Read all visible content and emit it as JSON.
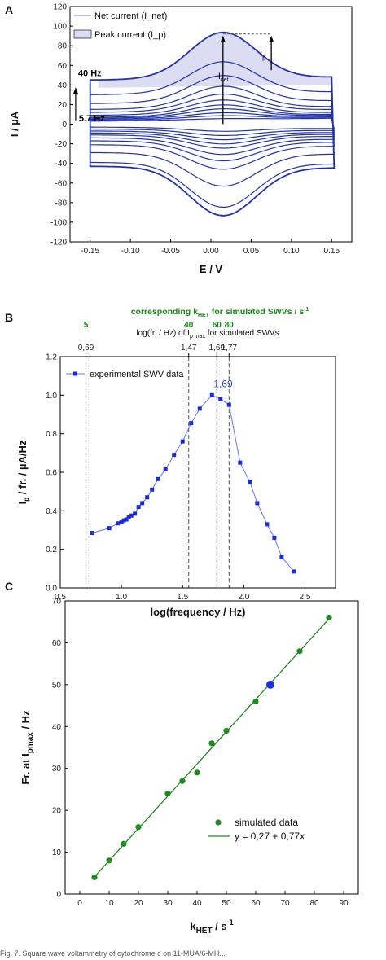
{
  "chart_data": [
    {
      "panel": "A",
      "type": "line",
      "xlabel": "E / V",
      "ylabel": "I / µA",
      "xlim": [
        -0.175,
        0.175
      ],
      "ylim": [
        -120,
        120
      ],
      "x_ticks": [
        "-0.15",
        "-0.10",
        "-0.05",
        "0.00",
        "0.05",
        "0.10",
        "0.15"
      ],
      "y_ticks": [
        "-120",
        "-100",
        "-80",
        "-60",
        "-40",
        "-20",
        "0",
        "20",
        "40",
        "60",
        "80",
        "100",
        "120"
      ],
      "legend": [
        "Net current (I_net)",
        "Peak current (I_p)"
      ],
      "legend_placement": "top-left",
      "annotations": {
        "high_freq": "40 Hz",
        "low_freq": "5.7 Hz",
        "ip_label": "I",
        "ip_sub": "p",
        "inet_label": "I",
        "inet_sub": "net"
      },
      "peak_potential": 0.015,
      "series": [
        {
          "forward": 3,
          "reverse": -3,
          "peak": 4
        },
        {
          "forward": 4,
          "reverse": -5,
          "peak": 7
        },
        {
          "forward": 5,
          "reverse": -7,
          "peak": 10
        },
        {
          "forward": 6,
          "reverse": -9,
          "peak": 14
        },
        {
          "forward": 7,
          "reverse": -11,
          "peak": 18
        },
        {
          "forward": 9,
          "reverse": -14,
          "peak": 23
        },
        {
          "forward": 12,
          "reverse": -17,
          "peak": 29
        },
        {
          "forward": 15,
          "reverse": -21,
          "peak": 37
        },
        {
          "forward": 21,
          "reverse": -29,
          "peak": 48
        },
        {
          "forward": 30,
          "reverse": -39,
          "peak": 62
        },
        {
          "forward": 45,
          "reverse": -43,
          "peak": 92
        }
      ]
    },
    {
      "panel": "B",
      "type": "line",
      "xlabel": "log(frequency / Hz)",
      "ylabel_main": "I",
      "ylabel_sub": "p",
      "ylabel_rest": " / fr. / µA/Hz",
      "xlim": [
        0.5,
        2.75
      ],
      "ylim": [
        0.0,
        1.2
      ],
      "x_ticks": [
        "0.5",
        "1.0",
        "1.5",
        "2.0",
        "2.5"
      ],
      "y_ticks": [
        "0.0",
        "0.2",
        "0.4",
        "0.6",
        "0.8",
        "1.0",
        "1.2"
      ],
      "legend": [
        "experimental SWV data"
      ],
      "legend_placement": "top-left",
      "peak_label": "1,69",
      "top_axis_title_1": "corresponding k",
      "top_axis_title_1_sub": "HET",
      "top_axis_title_1_rest": " for simulated SWVs / s",
      "top_axis_title_1_sup": "-1",
      "top_axis_title_2": "log(fr. / Hz) of I",
      "top_axis_title_2_sub": "p max",
      "top_axis_title_2_rest": " for simulated SWVs",
      "top_ticks": [
        {
          "x": 0.69,
          "label": "0,69",
          "k": "5"
        },
        {
          "x": 1.47,
          "label": "1,47",
          "k": "40"
        },
        {
          "x": 1.69,
          "label": "1,69",
          "k": "60"
        },
        {
          "x": 1.77,
          "label": "1,77",
          "k": "80"
        }
      ],
      "dashed_lines": [
        0.71,
        1.55,
        1.78,
        1.88
      ],
      "x": [
        0.76,
        0.9,
        0.97,
        1.0,
        1.02,
        1.04,
        1.06,
        1.08,
        1.11,
        1.14,
        1.17,
        1.21,
        1.25,
        1.3,
        1.36,
        1.43,
        1.5,
        1.57,
        1.64,
        1.74,
        1.81,
        1.88,
        1.97,
        2.05,
        2.11,
        2.19,
        2.25,
        2.31,
        2.41
      ],
      "y": [
        0.285,
        0.31,
        0.335,
        0.34,
        0.35,
        0.355,
        0.365,
        0.375,
        0.385,
        0.42,
        0.44,
        0.47,
        0.51,
        0.565,
        0.615,
        0.69,
        0.76,
        0.855,
        0.93,
        1.0,
        0.98,
        0.95,
        0.65,
        0.55,
        0.44,
        0.33,
        0.26,
        0.16,
        0.085
      ]
    },
    {
      "panel": "C",
      "type": "scatter",
      "xlabel_main": "k",
      "xlabel_sub": "HET",
      "xlabel_rest": " / s",
      "xlabel_sup": "-1",
      "ylabel_main": "Fr. at I",
      "ylabel_sub": "pmax",
      "ylabel_rest": " / Hz",
      "xlim": [
        -5,
        95
      ],
      "ylim": [
        0,
        70
      ],
      "x_ticks": [
        "0",
        "10",
        "20",
        "30",
        "40",
        "50",
        "60",
        "70",
        "80",
        "90"
      ],
      "y_ticks": [
        "0",
        "10",
        "20",
        "30",
        "40",
        "50",
        "60",
        "70"
      ],
      "legend": [
        "simulated data",
        "y = 0,27 + 0,77x"
      ],
      "legend_placement": "bottom-right",
      "fit": {
        "intercept": 0.27,
        "slope": 0.77
      },
      "x": [
        5,
        10,
        15,
        20,
        30,
        35,
        40,
        45,
        50,
        60,
        65,
        75,
        85
      ],
      "y": [
        4,
        8,
        12,
        16,
        24,
        27,
        29,
        36,
        39,
        46,
        50,
        58,
        66
      ],
      "highlight_x": 65,
      "highlight_y": 50
    }
  ],
  "caption": "Fig. 7. Square wave voltammetry of cytochrome c on 11-MUA/6-MH..."
}
